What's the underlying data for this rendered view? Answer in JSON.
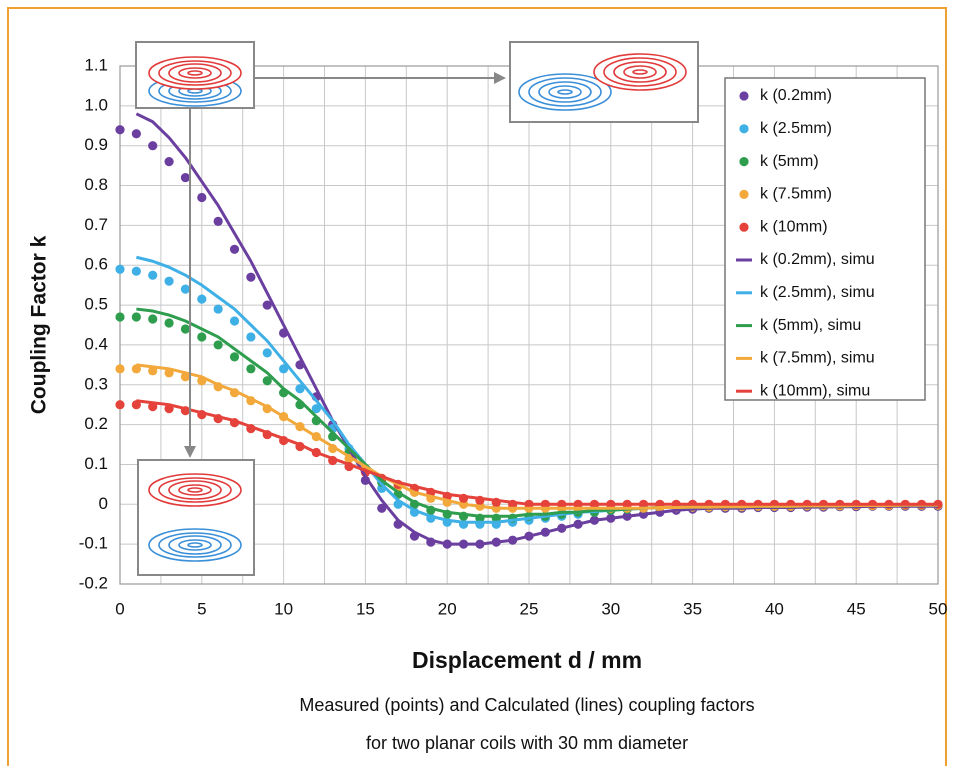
{
  "chart_data": {
    "type": "line",
    "xlabel": "Displacement d / mm",
    "ylabel": "Coupling Factor k",
    "caption": [
      "Measured (points) and Calculated (lines) coupling factors",
      "for two planar coils with 30 mm diameter"
    ],
    "xlim": [
      0,
      50
    ],
    "ylim": [
      -0.2,
      1.1
    ],
    "xticks": [
      0,
      5,
      10,
      15,
      20,
      25,
      30,
      35,
      40,
      45,
      50
    ],
    "x_minor_grid": [
      2.5,
      7.5,
      12.5,
      17.5,
      22.5,
      27.5,
      32.5,
      37.5,
      42.5,
      47.5
    ],
    "yticks": [
      {
        "value": 1.1,
        "label": "1.1"
      },
      {
        "value": 1,
        "label": "1.0"
      },
      0.9,
      0.8,
      0.7,
      0.6,
      0.5,
      0.4,
      0.3,
      0.2,
      0.1,
      0,
      -0.1,
      -0.2
    ],
    "grid": true,
    "legend": "upper right",
    "x": [
      0,
      1,
      2,
      3,
      4,
      5,
      6,
      7,
      8,
      9,
      10,
      11,
      12,
      13,
      14,
      15,
      16,
      17,
      18,
      19,
      20,
      21,
      22,
      23,
      24,
      25,
      26,
      27,
      28,
      29,
      30,
      31,
      32,
      33,
      34,
      35,
      36,
      37,
      38,
      39,
      40,
      41,
      42,
      43,
      44,
      45,
      46,
      47,
      48,
      49,
      50
    ],
    "series": [
      {
        "name": "k (0.2mm)",
        "mode": "markers",
        "color": "#6a3fa0",
        "values": [
          0.94,
          0.93,
          0.9,
          0.86,
          0.82,
          0.77,
          0.71,
          0.64,
          0.57,
          0.5,
          0.43,
          0.35,
          0.27,
          0.2,
          0.13,
          0.06,
          -0.01,
          -0.05,
          -0.08,
          -0.095,
          -0.1,
          -0.1,
          -0.1,
          -0.095,
          -0.09,
          -0.08,
          -0.07,
          -0.06,
          -0.05,
          -0.04,
          -0.035,
          -0.03,
          -0.025,
          -0.02,
          -0.015,
          -0.012,
          -0.01,
          -0.01,
          -0.01,
          -0.008,
          -0.008,
          -0.008,
          -0.007,
          -0.007,
          -0.006,
          -0.006,
          -0.005,
          -0.005,
          -0.005,
          -0.005,
          -0.005
        ]
      },
      {
        "name": "k (2.5mm)",
        "mode": "markers",
        "color": "#3fb0e6",
        "values": [
          0.59,
          0.585,
          0.575,
          0.56,
          0.54,
          0.515,
          0.49,
          0.46,
          0.42,
          0.38,
          0.34,
          0.29,
          0.24,
          0.19,
          0.14,
          0.09,
          0.04,
          0,
          -0.02,
          -0.035,
          -0.045,
          -0.05,
          -0.05,
          -0.05,
          -0.045,
          -0.04,
          -0.035,
          -0.03,
          -0.025,
          -0.02,
          -0.015,
          -0.012,
          -0.01,
          -0.008,
          -0.008,
          -0.007,
          -0.007,
          -0.006,
          -0.006,
          -0.005,
          -0.005,
          -0.005,
          -0.004,
          -0.004,
          -0.004,
          -0.003,
          -0.003,
          -0.003,
          -0.002,
          -0.002,
          -0.002
        ]
      },
      {
        "name": "k (5mm)",
        "mode": "markers",
        "color": "#2e9d4e",
        "values": [
          0.47,
          0.47,
          0.465,
          0.455,
          0.44,
          0.42,
          0.4,
          0.37,
          0.34,
          0.31,
          0.28,
          0.25,
          0.21,
          0.17,
          0.13,
          0.09,
          0.055,
          0.025,
          0,
          -0.015,
          -0.025,
          -0.03,
          -0.035,
          -0.035,
          -0.035,
          -0.03,
          -0.03,
          -0.025,
          -0.02,
          -0.02,
          -0.015,
          -0.012,
          -0.01,
          -0.008,
          -0.008,
          -0.007,
          -0.007,
          -0.006,
          -0.006,
          -0.005,
          -0.005,
          -0.005,
          -0.004,
          -0.004,
          -0.004,
          -0.003,
          -0.003,
          -0.003,
          -0.002,
          -0.002,
          -0.002
        ]
      },
      {
        "name": "k (7.5mm)",
        "mode": "markers",
        "color": "#f2a83a",
        "values": [
          0.34,
          0.34,
          0.335,
          0.33,
          0.32,
          0.31,
          0.295,
          0.28,
          0.26,
          0.24,
          0.22,
          0.195,
          0.17,
          0.14,
          0.115,
          0.09,
          0.065,
          0.045,
          0.03,
          0.015,
          0.005,
          0,
          -0.005,
          -0.01,
          -0.01,
          -0.01,
          -0.01,
          -0.01,
          -0.01,
          -0.01,
          -0.01,
          -0.01,
          -0.01,
          -0.008,
          -0.008,
          -0.007,
          -0.007,
          -0.006,
          -0.006,
          -0.005,
          -0.005,
          -0.005,
          -0.004,
          -0.004,
          -0.004,
          -0.003,
          -0.003,
          -0.003,
          -0.002,
          -0.002,
          -0.002
        ]
      },
      {
        "name": "k (10mm)",
        "mode": "markers",
        "color": "#e4423a",
        "values": [
          0.25,
          0.25,
          0.245,
          0.24,
          0.235,
          0.225,
          0.215,
          0.205,
          0.19,
          0.175,
          0.16,
          0.145,
          0.13,
          0.11,
          0.095,
          0.08,
          0.065,
          0.05,
          0.04,
          0.03,
          0.02,
          0.015,
          0.01,
          0.005,
          0,
          0,
          0,
          0,
          0,
          0,
          0,
          0,
          0,
          0,
          0,
          0,
          0,
          0,
          0,
          0,
          0,
          0,
          0,
          0,
          0,
          0,
          0,
          0,
          0,
          0,
          0
        ]
      },
      {
        "name": "k (0.2mm), simu",
        "mode": "lines",
        "color": "#6a3fa0",
        "values": [
          null,
          0.98,
          0.96,
          0.92,
          0.87,
          0.81,
          0.75,
          0.68,
          0.61,
          0.53,
          0.45,
          0.37,
          0.29,
          0.21,
          0.14,
          0.07,
          0.01,
          -0.04,
          -0.07,
          -0.09,
          -0.1,
          -0.1,
          -0.1,
          -0.095,
          -0.09,
          -0.08,
          -0.07,
          -0.06,
          -0.05,
          -0.04,
          -0.035,
          -0.03,
          -0.025,
          -0.02,
          -0.015,
          -0.012,
          -0.01,
          -0.01,
          -0.01,
          -0.008,
          -0.008,
          -0.008,
          -0.007,
          -0.007,
          -0.006,
          -0.006,
          -0.005,
          -0.005,
          -0.005,
          -0.005,
          -0.005
        ]
      },
      {
        "name": "k (2.5mm), simu",
        "mode": "lines",
        "color": "#3fb0e6",
        "values": [
          null,
          0.62,
          0.61,
          0.595,
          0.575,
          0.55,
          0.52,
          0.49,
          0.45,
          0.41,
          0.36,
          0.31,
          0.26,
          0.21,
          0.15,
          0.1,
          0.05,
          0.01,
          -0.015,
          -0.03,
          -0.04,
          -0.045,
          -0.045,
          -0.045,
          -0.04,
          -0.035,
          -0.03,
          -0.025,
          -0.02,
          -0.018,
          -0.015,
          -0.012,
          -0.01,
          -0.008,
          -0.008,
          -0.007,
          -0.007,
          -0.006,
          -0.006,
          -0.005,
          -0.005,
          -0.005,
          -0.004,
          -0.004,
          -0.004,
          -0.003,
          -0.003,
          -0.003,
          -0.002,
          -0.002,
          -0.002
        ]
      },
      {
        "name": "k (5mm), simu",
        "mode": "lines",
        "color": "#2e9d4e",
        "values": [
          null,
          0.49,
          0.485,
          0.475,
          0.46,
          0.44,
          0.42,
          0.39,
          0.36,
          0.33,
          0.29,
          0.26,
          0.22,
          0.18,
          0.14,
          0.1,
          0.06,
          0.03,
          0.005,
          -0.01,
          -0.02,
          -0.025,
          -0.03,
          -0.03,
          -0.03,
          -0.025,
          -0.025,
          -0.02,
          -0.02,
          -0.015,
          -0.015,
          -0.012,
          -0.01,
          -0.008,
          -0.008,
          -0.007,
          -0.007,
          -0.006,
          -0.006,
          -0.005,
          -0.005,
          -0.005,
          -0.004,
          -0.004,
          -0.004,
          -0.003,
          -0.003,
          -0.003,
          -0.002,
          -0.002,
          -0.002
        ]
      },
      {
        "name": "k (7.5mm), simu",
        "mode": "lines",
        "color": "#f2a83a",
        "values": [
          null,
          0.35,
          0.345,
          0.34,
          0.33,
          0.32,
          0.3,
          0.285,
          0.265,
          0.245,
          0.22,
          0.195,
          0.17,
          0.145,
          0.12,
          0.095,
          0.07,
          0.05,
          0.03,
          0.02,
          0.01,
          0,
          -0.005,
          -0.01,
          -0.01,
          -0.01,
          -0.01,
          -0.01,
          -0.01,
          -0.01,
          -0.01,
          -0.01,
          -0.01,
          -0.008,
          -0.008,
          -0.007,
          -0.007,
          -0.006,
          -0.006,
          -0.005,
          -0.005,
          -0.005,
          -0.004,
          -0.004,
          -0.004,
          -0.003,
          -0.003,
          -0.003,
          -0.002,
          -0.002,
          -0.002
        ]
      },
      {
        "name": "k (10mm), simu",
        "mode": "lines",
        "color": "#e4423a",
        "values": [
          null,
          0.26,
          0.255,
          0.25,
          0.24,
          0.23,
          0.22,
          0.21,
          0.195,
          0.18,
          0.165,
          0.15,
          0.13,
          0.115,
          0.1,
          0.085,
          0.07,
          0.055,
          0.045,
          0.035,
          0.025,
          0.02,
          0.015,
          0.01,
          0.005,
          0,
          0,
          0,
          0,
          0,
          0,
          0,
          0,
          0,
          0,
          0,
          0,
          0,
          0,
          0,
          0,
          0,
          0,
          0,
          0,
          0,
          0,
          0,
          0,
          0,
          0
        ]
      }
    ]
  }
}
